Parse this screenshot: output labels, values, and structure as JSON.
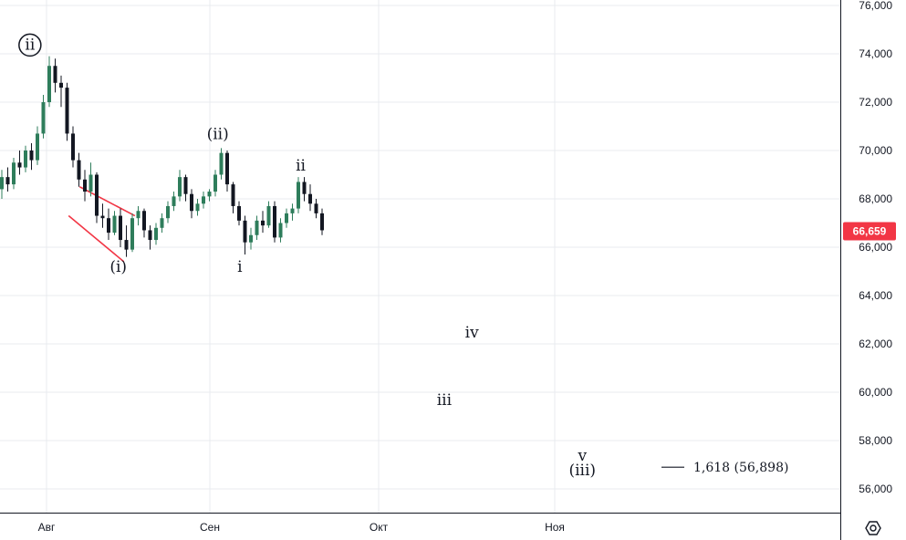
{
  "chart_data": {
    "type": "candlestick",
    "x_axis": {
      "ticks": [
        "Авг",
        "Сен",
        "Окт",
        "Ноя"
      ]
    },
    "y_axis": {
      "ylim": [
        55000,
        76000
      ],
      "ticks": [
        "76,000",
        "74,000",
        "72,000",
        "70,000",
        "68,000",
        "66,000",
        "64,000",
        "62,000",
        "60,000",
        "58,000",
        "56,000"
      ],
      "position": "right"
    },
    "grid": true,
    "current_price": {
      "value": 66659,
      "label": "66,659",
      "color": "#f23645"
    },
    "wave_labels": [
      {
        "text": "ii",
        "circled": true,
        "date": "2024-07-29",
        "price": 74400
      },
      {
        "text": "(i)",
        "date": "2024-08-14",
        "price": 65200
      },
      {
        "text": "(ii)",
        "date": "2024-09-01",
        "price": 70700
      },
      {
        "text": "i",
        "date": "2024-09-05",
        "price": 65200
      },
      {
        "text": "ii",
        "date": "2024-09-16",
        "price": 69400
      },
      {
        "text": "iv",
        "date": "2024-10-17",
        "price": 62500
      },
      {
        "text": "iii",
        "date": "2024-10-12",
        "price": 59700
      },
      {
        "text": "v",
        "date": "2024-11-06",
        "price": 57400
      },
      {
        "text": "(iii)",
        "date": "2024-11-06",
        "price": 56800
      }
    ],
    "fib_extension": {
      "label": "1,618 (56,898)",
      "value": 56898
    },
    "trendlines_color": "#f23645",
    "candles": [
      [
        68400,
        69200,
        68000,
        68900
      ],
      [
        68900,
        69300,
        68300,
        68600
      ],
      [
        68600,
        69700,
        68400,
        69500
      ],
      [
        69500,
        70000,
        69000,
        69300
      ],
      [
        69300,
        70200,
        69100,
        70000
      ],
      [
        70000,
        70300,
        69200,
        69600
      ],
      [
        69600,
        71000,
        69400,
        70700
      ],
      [
        70700,
        72300,
        70500,
        72000
      ],
      [
        72000,
        73900,
        71800,
        73500
      ],
      [
        73500,
        73800,
        72400,
        72800
      ],
      [
        72800,
        73100,
        71800,
        72600
      ],
      [
        72600,
        72800,
        70400,
        70700
      ],
      [
        70700,
        71000,
        69300,
        69600
      ],
      [
        69600,
        69900,
        68500,
        68800
      ],
      [
        68800,
        69200,
        67900,
        68300
      ],
      [
        68300,
        69500,
        68100,
        69000
      ],
      [
        69000,
        69100,
        67000,
        67300
      ],
      [
        67300,
        67800,
        66800,
        67200
      ],
      [
        67200,
        67600,
        66300,
        66600
      ],
      [
        66600,
        67500,
        66500,
        67300
      ],
      [
        67300,
        67600,
        66000,
        66300
      ],
      [
        66300,
        66900,
        65600,
        65900
      ],
      [
        65900,
        67400,
        65800,
        67200
      ],
      [
        67200,
        67700,
        66900,
        67500
      ],
      [
        67500,
        67600,
        66400,
        66700
      ],
      [
        66700,
        66900,
        65900,
        66300
      ],
      [
        66300,
        67000,
        66100,
        66800
      ],
      [
        66800,
        67400,
        66600,
        67200
      ],
      [
        67200,
        67900,
        67000,
        67700
      ],
      [
        67700,
        68300,
        67500,
        68100
      ],
      [
        68100,
        69200,
        67900,
        68900
      ],
      [
        68900,
        69000,
        67900,
        68200
      ],
      [
        68200,
        68400,
        67200,
        67500
      ],
      [
        67500,
        68000,
        67300,
        67800
      ],
      [
        67800,
        68300,
        67600,
        68100
      ],
      [
        68100,
        68400,
        67900,
        68300
      ],
      [
        68300,
        69200,
        68100,
        69000
      ],
      [
        69000,
        70100,
        68800,
        69900
      ],
      [
        69900,
        70000,
        68300,
        68600
      ],
      [
        68600,
        68700,
        67400,
        67700
      ],
      [
        67700,
        67900,
        66900,
        67100
      ],
      [
        67100,
        67300,
        65700,
        66200
      ],
      [
        66200,
        66800,
        65900,
        66500
      ],
      [
        66500,
        67300,
        66300,
        67100
      ],
      [
        67100,
        67500,
        66600,
        66900
      ],
      [
        66900,
        67900,
        66800,
        67700
      ],
      [
        67700,
        67900,
        66200,
        66400
      ],
      [
        66400,
        67200,
        66200,
        67000
      ],
      [
        67000,
        67600,
        66800,
        67400
      ],
      [
        67400,
        67800,
        67100,
        67600
      ],
      [
        67600,
        68900,
        67400,
        68700
      ],
      [
        68700,
        68900,
        67900,
        68200
      ],
      [
        68200,
        68600,
        67500,
        67800
      ],
      [
        67800,
        68000,
        67200,
        67400
      ],
      [
        67400,
        67600,
        66500,
        66700
      ]
    ]
  },
  "ui": {
    "settings_icon": "gear-icon"
  }
}
